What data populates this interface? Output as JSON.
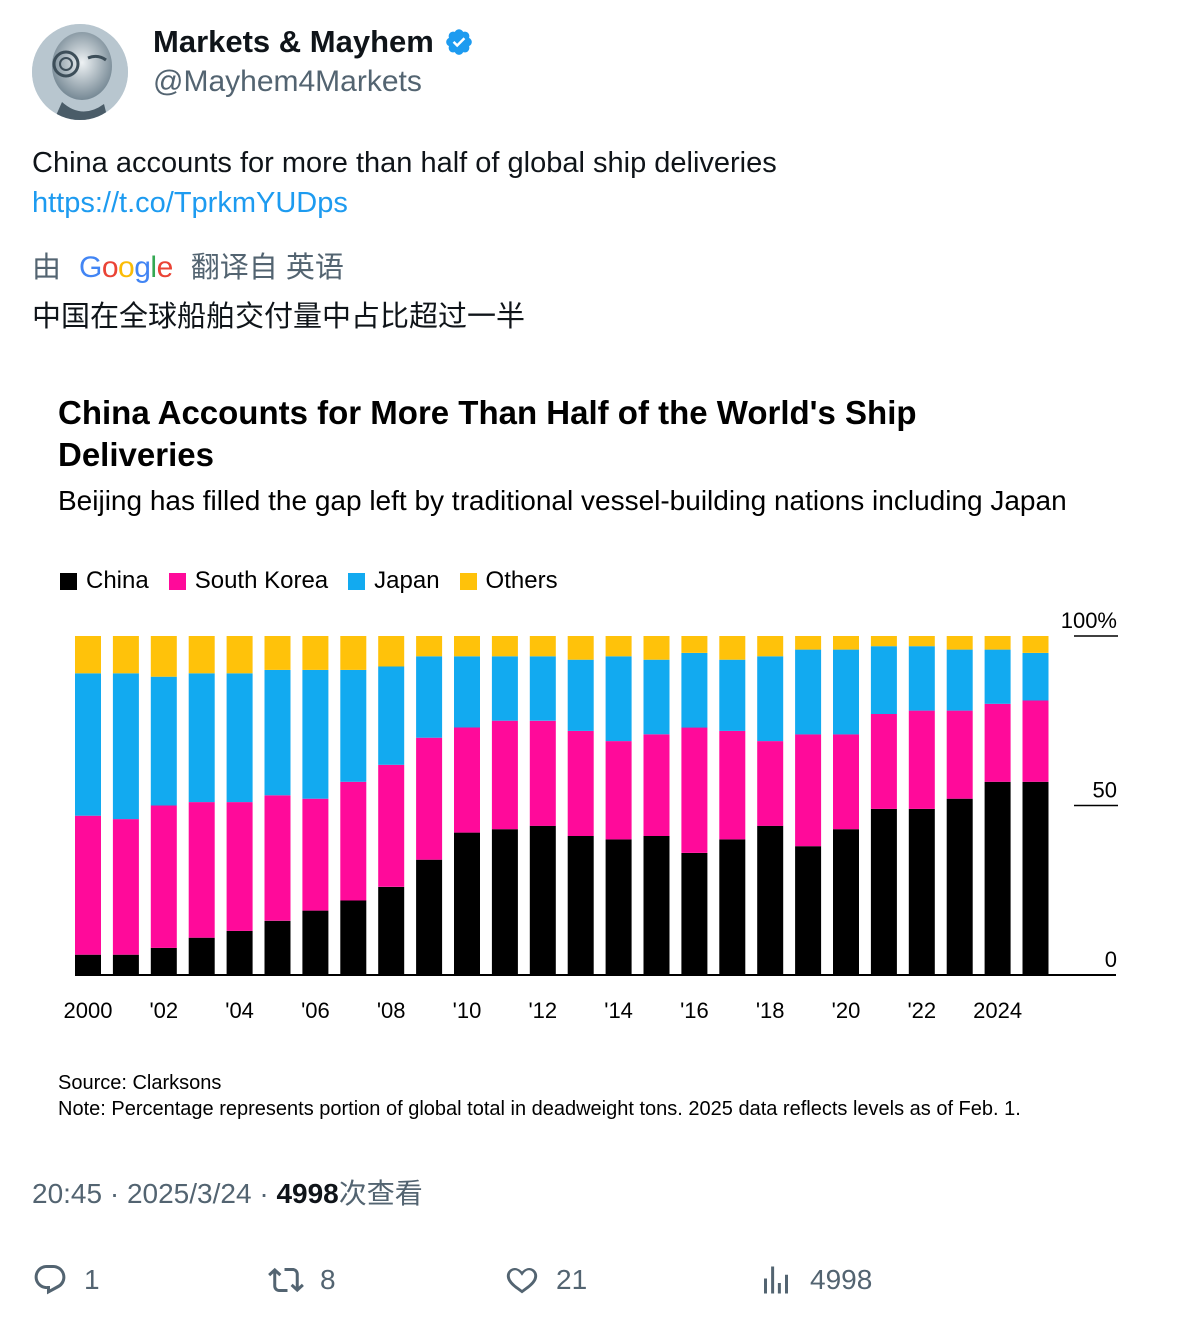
{
  "tweet": {
    "display_name": "Markets & Mayhem",
    "handle": "@Mayhem4Markets",
    "text": "China accounts for more than half of global ship deliveries",
    "link": "https://t.co/TprkmYUDps",
    "translation_prefix": "由",
    "translation_brand": "Google",
    "translation_suffix": "翻译自 英语",
    "translated_text": "中国在全球船舶交付量中占比超过一半",
    "time": "20:45",
    "date": "2025/3/24",
    "views_count": "4998",
    "views_label": "次查看"
  },
  "actions": {
    "replies": "1",
    "retweets": "8",
    "likes": "21",
    "views": "4998"
  },
  "colors": {
    "China": "#000000",
    "South Korea": "#ff0a9a",
    "Japan": "#12aaf0",
    "Others": "#ffc20a",
    "link": "#1d9bf0",
    "verified": "#1d9bf0"
  },
  "chart_data": {
    "type": "bar",
    "stacked": true,
    "title": "China Accounts for More Than Half of the World's Ship Deliveries",
    "subtitle": "Beijing has filled the gap left by traditional vessel-building nations including Japan",
    "legend": [
      "China",
      "South Korea",
      "Japan",
      "Others"
    ],
    "legend_position": "top-left",
    "y_axis_position": "right",
    "ylim": [
      0,
      100
    ],
    "y_ticks": [
      "0",
      "50",
      "100%"
    ],
    "x": [
      2000,
      2001,
      2002,
      2003,
      2004,
      2005,
      2006,
      2007,
      2008,
      2009,
      2010,
      2011,
      2012,
      2013,
      2014,
      2015,
      2016,
      2017,
      2018,
      2019,
      2020,
      2021,
      2022,
      2023,
      2024,
      2025
    ],
    "x_tick_labels": [
      "2000",
      "'02",
      "'04",
      "'06",
      "'08",
      "'10",
      "'12",
      "'14",
      "'16",
      "'18",
      "'20",
      "'22",
      "2024"
    ],
    "series": [
      {
        "name": "China",
        "values": [
          6,
          6,
          8,
          11,
          13,
          16,
          19,
          22,
          26,
          34,
          42,
          43,
          44,
          41,
          40,
          41,
          36,
          40,
          44,
          38,
          43,
          49,
          49,
          52,
          57,
          57
        ]
      },
      {
        "name": "South Korea",
        "values": [
          41,
          40,
          42,
          40,
          38,
          37,
          33,
          35,
          36,
          36,
          31,
          32,
          31,
          31,
          29,
          30,
          37,
          32,
          25,
          33,
          28,
          28,
          29,
          26,
          23,
          24
        ]
      },
      {
        "name": "Japan",
        "values": [
          42,
          43,
          38,
          38,
          38,
          37,
          38,
          33,
          29,
          24,
          21,
          19,
          19,
          21,
          25,
          22,
          22,
          21,
          25,
          25,
          25,
          20,
          19,
          18,
          16,
          14
        ]
      },
      {
        "name": "Others",
        "values": [
          11,
          11,
          12,
          11,
          11,
          10,
          10,
          10,
          9,
          6,
          6,
          6,
          6,
          7,
          6,
          7,
          5,
          7,
          6,
          4,
          4,
          3,
          3,
          4,
          4,
          5
        ]
      }
    ],
    "source": "Source: Clarksons",
    "note": "Note: Percentage represents portion of global total in deadweight tons. 2025 data reflects levels as of Feb. 1."
  }
}
